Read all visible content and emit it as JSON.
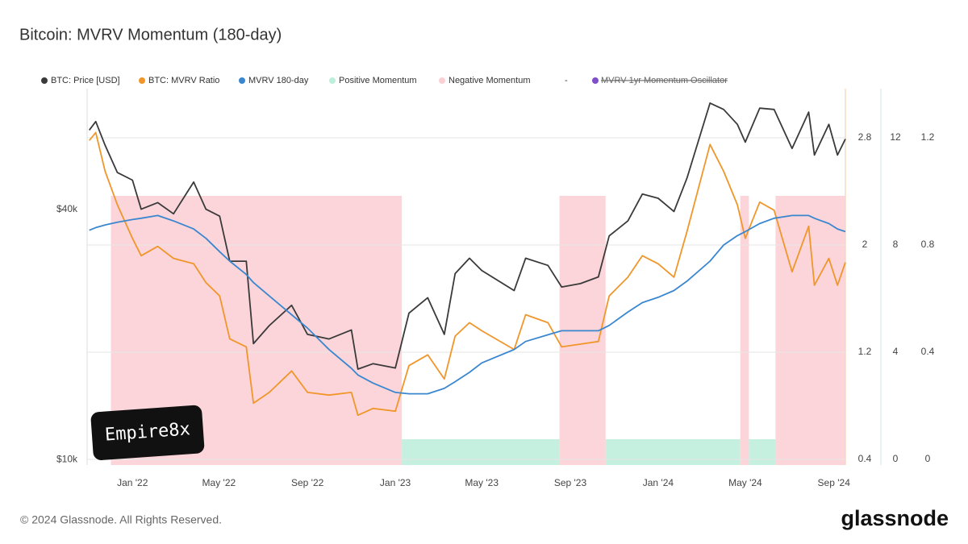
{
  "chart_data": {
    "type": "line",
    "title": "Bitcoin: MVRV Momentum (180-day)",
    "x": [
      "2021-11-02",
      "2021-11-11",
      "2021-11-24",
      "2021-12-11",
      "2022-01-01",
      "2022-01-13",
      "2022-02-05",
      "2022-02-27",
      "2022-03-27",
      "2022-04-13",
      "2022-05-02",
      "2022-05-16",
      "2022-06-08",
      "2022-06-18",
      "2022-07-10",
      "2022-08-10",
      "2022-09-01",
      "2022-10-01",
      "2022-11-01",
      "2022-11-10",
      "2022-12-01",
      "2023-01-01",
      "2023-01-20",
      "2023-02-15",
      "2023-03-10",
      "2023-03-25",
      "2023-04-14",
      "2023-05-01",
      "2023-06-15",
      "2023-07-01",
      "2023-08-01",
      "2023-08-20",
      "2023-09-15",
      "2023-10-10",
      "2023-10-25",
      "2023-11-20",
      "2023-12-10",
      "2024-01-01",
      "2024-01-23",
      "2024-02-10",
      "2024-03-13",
      "2024-04-01",
      "2024-04-20",
      "2024-05-01",
      "2024-05-21",
      "2024-06-10",
      "2024-07-05",
      "2024-07-28",
      "2024-08-05",
      "2024-08-25",
      "2024-09-06",
      "2024-09-17"
    ],
    "series": [
      {
        "name": "BTC: Price [USD]",
        "color": "#3a3a3a",
        "axis": "y",
        "values": [
          62000,
          65000,
          57000,
          49000,
          47000,
          40000,
          41500,
          39000,
          46500,
          40000,
          38500,
          30000,
          30000,
          19000,
          21000,
          23500,
          20000,
          19500,
          20500,
          16500,
          17000,
          16600,
          22500,
          24500,
          20000,
          28000,
          30500,
          28500,
          25500,
          30500,
          29300,
          26000,
          26500,
          27500,
          34500,
          37500,
          43500,
          42500,
          39500,
          47500,
          72000,
          69500,
          64000,
          58000,
          70000,
          69500,
          56000,
          68500,
          54000,
          64000,
          54000,
          59000
        ]
      },
      {
        "name": "BTC: MVRV Ratio",
        "color": "#f0962a",
        "axis": "y2",
        "values": [
          2.78,
          2.84,
          2.55,
          2.3,
          2.05,
          1.92,
          1.99,
          1.9,
          1.86,
          1.72,
          1.62,
          1.3,
          1.24,
          0.82,
          0.9,
          1.06,
          0.9,
          0.88,
          0.9,
          0.73,
          0.78,
          0.76,
          1.1,
          1.18,
          1.0,
          1.32,
          1.42,
          1.36,
          1.22,
          1.48,
          1.42,
          1.24,
          1.26,
          1.28,
          1.62,
          1.76,
          1.92,
          1.86,
          1.76,
          2.1,
          2.75,
          2.55,
          2.3,
          2.05,
          2.32,
          2.26,
          1.8,
          2.14,
          1.7,
          1.9,
          1.7,
          1.87
        ]
      },
      {
        "name": "MVRV 180-day",
        "color": "#3a87d0",
        "axis": "y2",
        "values": [
          2.11,
          2.13,
          2.15,
          2.17,
          2.19,
          2.2,
          2.22,
          2.18,
          2.12,
          2.05,
          1.95,
          1.88,
          1.78,
          1.72,
          1.62,
          1.48,
          1.38,
          1.22,
          1.08,
          1.03,
          0.97,
          0.9,
          0.89,
          0.89,
          0.93,
          0.98,
          1.05,
          1.12,
          1.22,
          1.28,
          1.33,
          1.36,
          1.36,
          1.36,
          1.4,
          1.5,
          1.57,
          1.61,
          1.66,
          1.73,
          1.88,
          2.0,
          2.07,
          2.1,
          2.16,
          2.2,
          2.22,
          2.22,
          2.2,
          2.16,
          2.12,
          2.1
        ]
      }
    ],
    "bands": [
      {
        "name": "Positive Momentum",
        "color": "#bfeedd",
        "ranges": [
          [
            "2023-01-10",
            "2023-08-17"
          ],
          [
            "2023-10-20",
            "2024-04-24"
          ],
          [
            "2024-05-06",
            "2024-06-12"
          ]
        ]
      },
      {
        "name": "Negative Momentum",
        "color": "#fbd0d5",
        "ranges": [
          [
            "2021-12-02",
            "2023-01-10"
          ],
          [
            "2023-08-17",
            "2023-10-20"
          ],
          [
            "2024-04-24",
            "2024-05-06"
          ],
          [
            "2024-06-12",
            "2024-09-17"
          ]
        ]
      }
    ],
    "legend_separator": "-",
    "hidden_series": {
      "name": "MVRV 1yr Momentum Oscillator",
      "color": "#7e4fc7"
    },
    "xlim": [
      "2021-10-30",
      "2024-09-17"
    ],
    "xticks": [
      {
        "value": "2022-01-01",
        "label": "Jan '22"
      },
      {
        "value": "2022-05-01",
        "label": "May '22"
      },
      {
        "value": "2022-09-01",
        "label": "Sep '22"
      },
      {
        "value": "2023-01-01",
        "label": "Jan '23"
      },
      {
        "value": "2023-05-01",
        "label": "May '23"
      },
      {
        "value": "2023-09-01",
        "label": "Sep '23"
      },
      {
        "value": "2024-01-01",
        "label": "Jan '24"
      },
      {
        "value": "2024-05-01",
        "label": "May '24"
      },
      {
        "value": "2024-09-01",
        "label": "Sep '24"
      }
    ],
    "ylim": [
      9700,
      78000
    ],
    "log_scale": true,
    "yticks": [
      {
        "value": 10000,
        "label": "$10k"
      },
      {
        "value": 40000,
        "label": "$40k"
      }
    ],
    "y2lim": [
      0.358,
      3.167
    ],
    "y2ticks": [
      0.4,
      1.2,
      2,
      2.8
    ],
    "y3lim": [
      -0.21,
      13.83
    ],
    "y3ticks": [
      0,
      4,
      8,
      12
    ],
    "y4lim": [
      -0.021,
      1.383
    ],
    "y4ticks": [
      0,
      0.4,
      0.8,
      1.2
    ],
    "grid": true
  },
  "footer": {
    "copyright": "© 2024 Glassnode. All Rights Reserved.",
    "logo": "glassnode"
  },
  "watermark": "Empire8x"
}
